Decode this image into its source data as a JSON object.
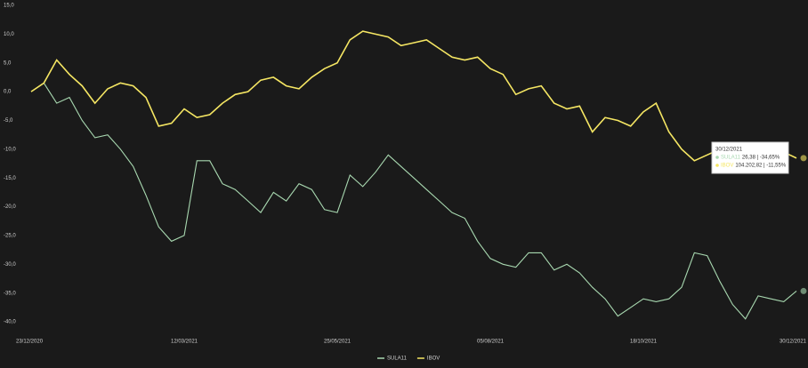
{
  "chart_data": {
    "type": "line",
    "categories": [
      "23/12/2020",
      null,
      null,
      null,
      null,
      null,
      null,
      null,
      null,
      null,
      null,
      null,
      "12/03/2021",
      null,
      null,
      null,
      null,
      null,
      null,
      null,
      null,
      null,
      null,
      null,
      "25/05/2021",
      null,
      null,
      null,
      null,
      null,
      null,
      null,
      null,
      null,
      null,
      null,
      "05/08/2021",
      null,
      null,
      null,
      null,
      null,
      null,
      null,
      null,
      null,
      null,
      null,
      "18/10/2021",
      null,
      null,
      null,
      null,
      null,
      null,
      null,
      null,
      null,
      null,
      null,
      "30/12/2021"
    ],
    "series": [
      {
        "name": "SULA11",
        "color": "#a8d8b0",
        "values": [
          0,
          1.5,
          -2,
          -1,
          -5,
          -8,
          -7.5,
          -10,
          -13,
          -18,
          -23.5,
          -26,
          -25,
          -12,
          -12,
          -16,
          -17,
          -19,
          -21,
          -17.5,
          -19,
          -16,
          -17,
          -20.5,
          -21,
          -14.5,
          -16.5,
          -14,
          -11,
          -13,
          -15,
          -17,
          -19,
          -21,
          -22,
          -26,
          -29,
          -30,
          -30.5,
          -28,
          -28,
          -31,
          -30,
          -31.5,
          -34,
          -36,
          -39,
          -37.5,
          -36,
          -36.5,
          -36,
          -34,
          -28,
          -28.5,
          -33,
          -37,
          -39.5,
          -35.5,
          -36,
          -36.5,
          -34.65
        ]
      },
      {
        "name": "IBOV",
        "color": "#f5e663",
        "values": [
          0,
          1.5,
          5.5,
          3,
          1,
          -2,
          0.5,
          1.5,
          1,
          -1,
          -6,
          -5.5,
          -3,
          -4.5,
          -4,
          -2,
          -0.5,
          0,
          2,
          2.5,
          1,
          0.5,
          2.5,
          4,
          5,
          9,
          10.5,
          10,
          9.5,
          8,
          8.5,
          9,
          7.5,
          6,
          5.5,
          6,
          4,
          3,
          -0.5,
          0.5,
          1,
          -2,
          -3,
          -2.5,
          -7,
          -4.5,
          -5,
          -6,
          -3.5,
          -2,
          -7,
          -10,
          -12,
          -11,
          -10,
          -9.5,
          -13.5,
          -11,
          -9,
          -10.5,
          -11.55
        ]
      }
    ],
    "ylim": [
      -42,
      15
    ],
    "yticks": [
      {
        "value": -40,
        "label": "-40,0"
      },
      {
        "value": -35,
        "label": "-35,0"
      },
      {
        "value": -30,
        "label": "-30,0"
      },
      {
        "value": -25,
        "label": "-25,0"
      },
      {
        "value": -20,
        "label": "-20,0"
      },
      {
        "value": -15,
        "label": "-15,0"
      },
      {
        "value": -10,
        "label": "-10,0"
      },
      {
        "value": -5,
        "label": "-5,0"
      },
      {
        "value": 0,
        "label": "0,0"
      },
      {
        "value": 5,
        "label": "5,0"
      },
      {
        "value": 10,
        "label": "10,0"
      },
      {
        "value": 15,
        "label": "15,0"
      }
    ],
    "tooltip": {
      "date": "30/12/2021",
      "lines": [
        {
          "name": "SULA11",
          "text": "26,38 | -34,65%"
        },
        {
          "name": "IBOV",
          "text": "104.202,82 | -11,55%"
        }
      ]
    }
  }
}
